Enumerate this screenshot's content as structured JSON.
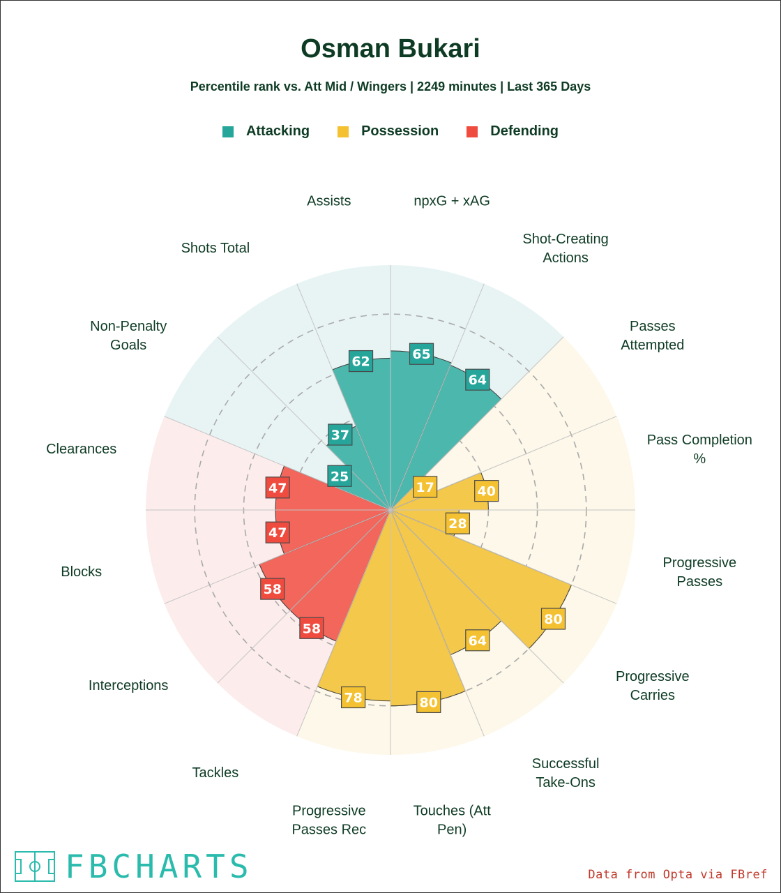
{
  "header": {
    "title": "Osman Bukari",
    "subtitle": "Percentile rank vs. Att Mid / Wingers | 2249 minutes | Last 365 Days"
  },
  "legend": [
    {
      "label": "Attacking",
      "color": "#26a69a"
    },
    {
      "label": "Possession",
      "color": "#f4c132"
    },
    {
      "label": "Defending",
      "color": "#ef4b3f"
    }
  ],
  "footer": {
    "logo_text": "FBCHARTS",
    "source": "Data from Opta via FBref"
  },
  "chart_data": {
    "type": "polar-bar",
    "title": "Osman Bukari",
    "rlim": [
      0,
      100
    ],
    "ring_levels": [
      20,
      40,
      60,
      80
    ],
    "start_category": "npxG + xAG",
    "direction": "clockwise",
    "colors": {
      "Attacking": {
        "bar": "#4cb8ad",
        "box": "#26a69a",
        "bg": "#e8f4f4"
      },
      "Possession": {
        "bar": "#f4c84a",
        "box": "#f4c132",
        "bg": "#fdf8e9"
      },
      "Defending": {
        "bar": "#f2665c",
        "box": "#ef4b3f",
        "bg": "#fdecec"
      }
    },
    "categories": [
      {
        "label": "npxG + xAG",
        "value": 65,
        "group": "Attacking"
      },
      {
        "label": "Shot-Creating Actions",
        "value": 64,
        "group": "Attacking"
      },
      {
        "label": "Passes Attempted",
        "value": 17,
        "group": "Possession"
      },
      {
        "label": "Pass Completion %",
        "value": 40,
        "group": "Possession"
      },
      {
        "label": "Progressive Passes",
        "value": 28,
        "group": "Possession"
      },
      {
        "label": "Progressive Carries",
        "value": 80,
        "group": "Possession"
      },
      {
        "label": "Successful Take-Ons",
        "value": 64,
        "group": "Possession"
      },
      {
        "label": "Touches (Att Pen)",
        "value": 80,
        "group": "Possession"
      },
      {
        "label": "Progressive Passes Rec",
        "value": 78,
        "group": "Possession"
      },
      {
        "label": "Tackles",
        "value": 58,
        "group": "Defending"
      },
      {
        "label": "Interceptions",
        "value": 58,
        "group": "Defending"
      },
      {
        "label": "Blocks",
        "value": 47,
        "group": "Defending"
      },
      {
        "label": "Clearances",
        "value": 47,
        "group": "Defending"
      },
      {
        "label": "Non-Penalty Goals",
        "value": 25,
        "group": "Attacking"
      },
      {
        "label": "Shots Total",
        "value": 37,
        "group": "Attacking"
      },
      {
        "label": "Assists",
        "value": 62,
        "group": "Attacking"
      }
    ]
  }
}
